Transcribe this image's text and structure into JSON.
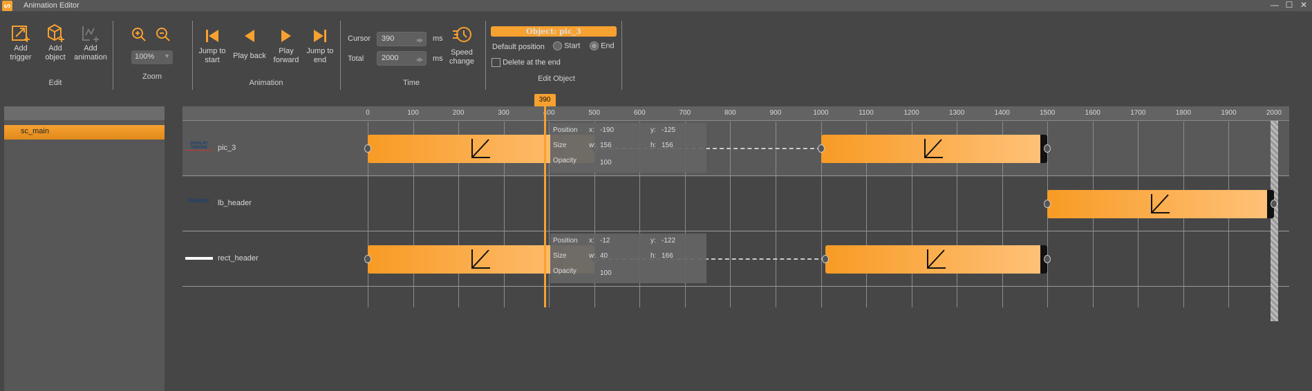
{
  "window": {
    "title": "Animation Editor",
    "logo": "logo-icon"
  },
  "toolbar": {
    "edit": {
      "label": "Edit",
      "add_trigger": "Add\ntrigger",
      "add_object": "Add\nobject",
      "add_animation": "Add\nanimation"
    },
    "zoom": {
      "label": "Zoom",
      "value": "100%"
    },
    "animation": {
      "label": "Animation",
      "jump_start": "Jump to\nstart",
      "play_back": "Play back",
      "play_forward": "Play\nforward",
      "jump_end": "Jump to\nend"
    },
    "time": {
      "label": "Time",
      "cursor_label": "Cursor",
      "cursor_value": "390",
      "total_label": "Total",
      "total_value": "2000",
      "unit": "ms",
      "speed_change": "Speed\nchange"
    },
    "edit_object": {
      "label": "Edit Object",
      "object_title": "Object: pic_3",
      "default_position": "Default position",
      "start": "Start",
      "end": "End",
      "selected": "End",
      "delete_at_end": "Delete at the end",
      "delete_checked": false
    }
  },
  "scenes": {
    "search": "",
    "items": [
      {
        "label": "sc_main",
        "selected": true
      }
    ]
  },
  "timeline": {
    "cursor_ms": 390,
    "cursor_label": "390",
    "total_ms": 2000,
    "ticks": [
      "0",
      "100",
      "200",
      "300",
      "400",
      "500",
      "600",
      "700",
      "800",
      "900",
      "1000",
      "1100",
      "1200",
      "1300",
      "1400",
      "1500",
      "1600",
      "1700",
      "1800",
      "1900",
      "2000"
    ],
    "accent": "#f7a130",
    "rows": [
      {
        "name": "pic_3",
        "thumb": "DISPLAY VISIONS",
        "selected": true,
        "bars": [
          [
            0,
            500
          ],
          [
            1000,
            1500
          ]
        ],
        "tooltip": {
          "position": "Position",
          "size": "Size",
          "opacity": "Opacity",
          "x": "-190",
          "y": "-125",
          "w": "156",
          "h": "156",
          "opacity_value": "100"
        }
      },
      {
        "name": "lb_header",
        "thumb": "Header",
        "selected": false,
        "bars": [
          [
            1500,
            2000
          ]
        ]
      },
      {
        "name": "rect_header",
        "thumb": "",
        "selected": false,
        "bars": [
          [
            0,
            500
          ],
          [
            1010,
            1500
          ]
        ],
        "tooltip": {
          "position": "Position",
          "size": "Size",
          "opacity": "Opacity",
          "x": "-12",
          "y": "-122",
          "w": "40",
          "h": "166",
          "opacity_value": "100"
        }
      }
    ]
  }
}
